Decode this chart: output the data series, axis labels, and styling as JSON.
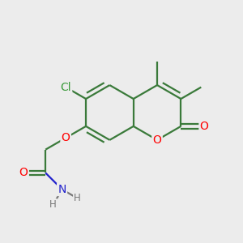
{
  "background_color": "#ececec",
  "bond_color": "#3a7a3a",
  "atom_colors": {
    "O": "#ff0000",
    "N": "#2222cc",
    "Cl": "#3a9a3a",
    "H": "#777777",
    "C": "#3a7a3a"
  },
  "figsize": [
    3.0,
    3.0
  ],
  "dpi": 100,
  "lw": 1.6,
  "font_size": 10,
  "font_size_small": 8.5
}
